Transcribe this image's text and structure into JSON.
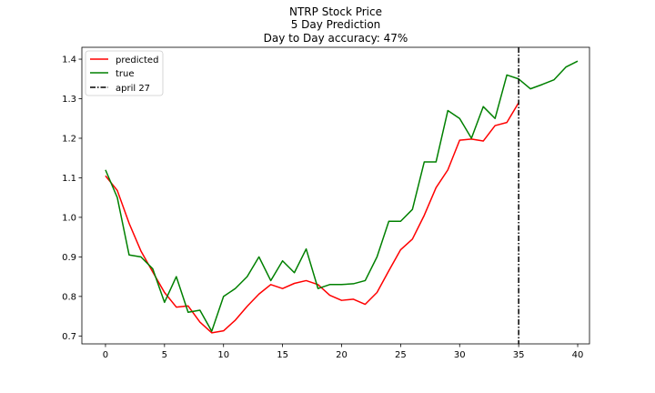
{
  "chart_data": {
    "type": "line",
    "title_lines": [
      "NTRP Stock Price",
      "5 Day Prediction",
      "Day to Day accuracy: 47%"
    ],
    "xlabel": "",
    "ylabel": "",
    "xlim": [
      -2,
      41
    ],
    "ylim": [
      0.68,
      1.43
    ],
    "xticks": [
      0,
      5,
      10,
      15,
      20,
      25,
      30,
      35,
      40
    ],
    "yticks": [
      0.7,
      0.8,
      0.9,
      1.0,
      1.1,
      1.2,
      1.3,
      1.4
    ],
    "ytick_labels": [
      "0.7",
      "0.8",
      "0.9",
      "1.0",
      "1.1",
      "1.2",
      "1.3",
      "1.4"
    ],
    "grid": false,
    "legend_placement": "upper-left",
    "series": [
      {
        "name": "predicted",
        "color": "#ff0000",
        "x": [
          0,
          1,
          2,
          3,
          4,
          5,
          6,
          7,
          8,
          9,
          10,
          11,
          12,
          13,
          14,
          15,
          16,
          17,
          18,
          19,
          20,
          21,
          22,
          23,
          24,
          25,
          26,
          27,
          28,
          29,
          30,
          31,
          32,
          33,
          34,
          35
        ],
        "values": [
          1.105,
          1.068,
          0.985,
          0.915,
          0.862,
          0.81,
          0.773,
          0.776,
          0.735,
          0.708,
          0.713,
          0.74,
          0.775,
          0.806,
          0.83,
          0.82,
          0.833,
          0.84,
          0.83,
          0.803,
          0.79,
          0.793,
          0.78,
          0.81,
          0.865,
          0.918,
          0.945,
          1.005,
          1.075,
          1.12,
          1.195,
          1.198,
          1.193,
          1.232,
          1.24,
          1.29
        ]
      },
      {
        "name": "true",
        "color": "#008000",
        "x": [
          0,
          1,
          2,
          3,
          4,
          5,
          6,
          7,
          8,
          9,
          10,
          11,
          12,
          13,
          14,
          15,
          16,
          17,
          18,
          19,
          20,
          21,
          22,
          23,
          24,
          25,
          26,
          27,
          28,
          29,
          30,
          31,
          32,
          33,
          34,
          35,
          36,
          37,
          38,
          39,
          40
        ],
        "values": [
          1.12,
          1.05,
          0.905,
          0.9,
          0.87,
          0.785,
          0.85,
          0.76,
          0.765,
          0.712,
          0.8,
          0.82,
          0.85,
          0.9,
          0.84,
          0.89,
          0.86,
          0.92,
          0.82,
          0.83,
          0.83,
          0.832,
          0.84,
          0.9,
          0.99,
          0.99,
          1.02,
          1.14,
          1.14,
          1.27,
          1.25,
          1.2,
          1.28,
          1.25,
          1.36,
          1.35,
          1.325,
          1.336,
          1.348,
          1.38,
          1.395
        ]
      }
    ],
    "vlines": [
      {
        "name": "april 27",
        "x": 35,
        "color": "#000000",
        "style": "dash-dot"
      }
    ]
  }
}
